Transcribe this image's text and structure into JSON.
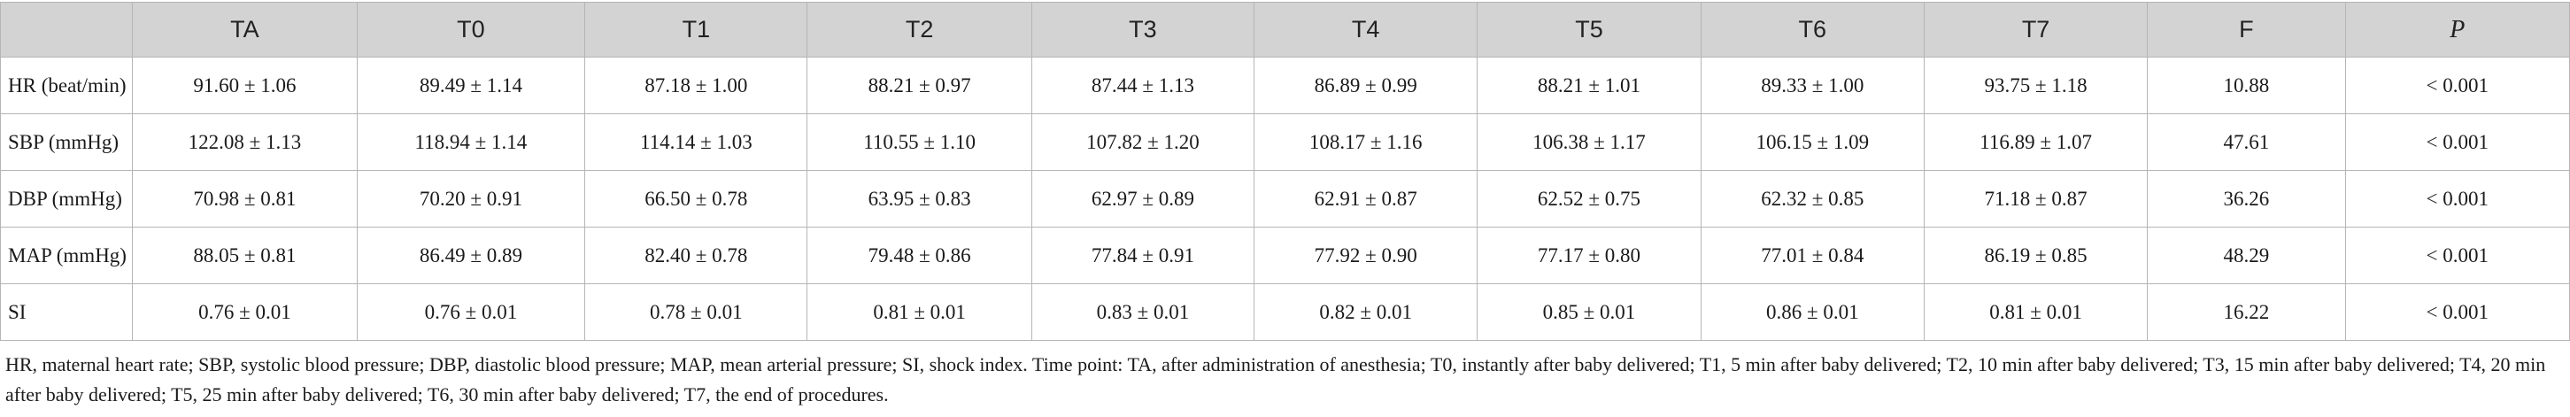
{
  "table": {
    "header": {
      "row_label": "",
      "columns": [
        "TA",
        "T0",
        "T1",
        "T2",
        "T3",
        "T4",
        "T5",
        "T6",
        "T7",
        "F",
        "P"
      ]
    },
    "rows": [
      {
        "label": "HR (beat/min)",
        "cells": [
          "91.60 ± 1.06",
          "89.49 ± 1.14",
          "87.18 ± 1.00",
          "88.21 ± 0.97",
          "87.44 ± 1.13",
          "86.89 ± 0.99",
          "88.21 ± 1.01",
          "89.33 ± 1.00",
          "93.75 ± 1.18",
          "10.88",
          "< 0.001"
        ]
      },
      {
        "label": "SBP (mmHg)",
        "cells": [
          "122.08 ± 1.13",
          "118.94 ± 1.14",
          "114.14 ± 1.03",
          "110.55 ± 1.10",
          "107.82 ± 1.20",
          "108.17 ± 1.16",
          "106.38 ± 1.17",
          "106.15 ± 1.09",
          "116.89 ± 1.07",
          "47.61",
          "< 0.001"
        ]
      },
      {
        "label": "DBP (mmHg)",
        "cells": [
          "70.98 ± 0.81",
          "70.20 ± 0.91",
          "66.50 ± 0.78",
          "63.95 ± 0.83",
          "62.97 ± 0.89",
          "62.91 ± 0.87",
          "62.52 ± 0.75",
          "62.32 ± 0.85",
          "71.18 ± 0.87",
          "36.26",
          "< 0.001"
        ]
      },
      {
        "label": "MAP (mmHg)",
        "cells": [
          "88.05 ± 0.81",
          "86.49 ± 0.89",
          "82.40 ± 0.78",
          "79.48 ± 0.86",
          "77.84 ± 0.91",
          "77.92 ± 0.90",
          "77.17 ± 0.80",
          "77.01 ± 0.84",
          "86.19 ± 0.85",
          "48.29",
          "< 0.001"
        ]
      },
      {
        "label": "SI",
        "cells": [
          "0.76 ± 0.01",
          "0.76 ± 0.01",
          "0.78 ± 0.01",
          "0.81 ± 0.01",
          "0.83 ± 0.01",
          "0.82 ± 0.01",
          "0.85 ± 0.01",
          "0.86 ± 0.01",
          "0.81 ± 0.01",
          "16.22",
          "< 0.001"
        ]
      }
    ]
  },
  "footnote": "HR, maternal heart rate; SBP, systolic blood pressure; DBP, diastolic blood pressure; MAP, mean arterial pressure; SI, shock index. Time point: TA, after administration of anesthesia; T0, instantly after baby delivered; T1, 5 min after baby delivered; T2, 10 min after baby delivered; T3, 15 min after baby delivered; T4, 20 min after baby delivered; T5, 25 min after baby delivered; T6, 30 min after baby delivered; T7, the end of procedures.",
  "colors": {
    "header_bg": "#d3d3d3",
    "border": "#b5b5b5",
    "text": "#1a1a1a"
  }
}
